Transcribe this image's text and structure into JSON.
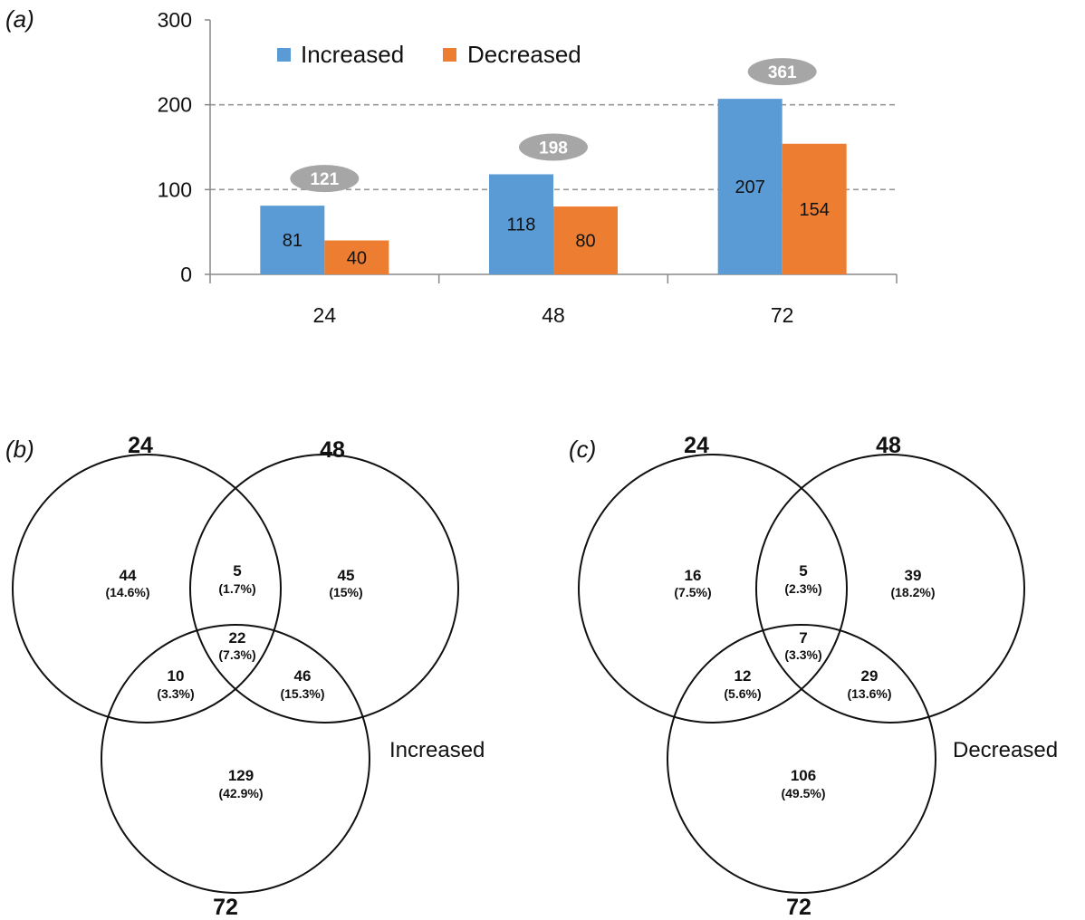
{
  "colors": {
    "increased": "#5b9bd5",
    "decreased": "#ed7d31",
    "total_badge": "#a6a6a6",
    "axis": "#888888",
    "grid": "#999999"
  },
  "chart_data": [
    {
      "panel": "(a)",
      "type": "bar",
      "categories": [
        "24",
        "48",
        "72"
      ],
      "series": [
        {
          "name": "Increased",
          "values": [
            81,
            118,
            207
          ]
        },
        {
          "name": "Decreased",
          "values": [
            40,
            80,
            154
          ]
        }
      ],
      "totals": [
        121,
        198,
        361
      ],
      "ylim": [
        0,
        300
      ],
      "yticks": [
        "0",
        "100",
        "200",
        "300"
      ],
      "grid": "dashed at 100 and 200",
      "legend": "top-left"
    },
    {
      "panel": "(b)",
      "type": "venn",
      "title": "Increased",
      "sets": [
        "24",
        "48",
        "72"
      ],
      "regions": [
        {
          "id": "a",
          "count": "44",
          "pct": "(14.6%)"
        },
        {
          "id": "ab",
          "count": "5",
          "pct": "(1.7%)"
        },
        {
          "id": "b",
          "count": "45",
          "pct": "(15%)"
        },
        {
          "id": "abc",
          "count": "22",
          "pct": "(7.3%)"
        },
        {
          "id": "ac",
          "count": "10",
          "pct": "(3.3%)"
        },
        {
          "id": "bc",
          "count": "46",
          "pct": "(15.3%)"
        },
        {
          "id": "c",
          "count": "129",
          "pct": "(42.9%)"
        }
      ]
    },
    {
      "panel": "(c)",
      "type": "venn",
      "title": "Decreased",
      "sets": [
        "24",
        "48",
        "72"
      ],
      "regions": [
        {
          "id": "a",
          "count": "16",
          "pct": "(7.5%)"
        },
        {
          "id": "ab",
          "count": "5",
          "pct": "(2.3%)"
        },
        {
          "id": "b",
          "count": "39",
          "pct": "(18.2%)"
        },
        {
          "id": "abc",
          "count": "7",
          "pct": "(3.3%)"
        },
        {
          "id": "ac",
          "count": "12",
          "pct": "(5.6%)"
        },
        {
          "id": "bc",
          "count": "29",
          "pct": "(13.6%)"
        },
        {
          "id": "c",
          "count": "106",
          "pct": "(49.5%)"
        }
      ]
    }
  ]
}
